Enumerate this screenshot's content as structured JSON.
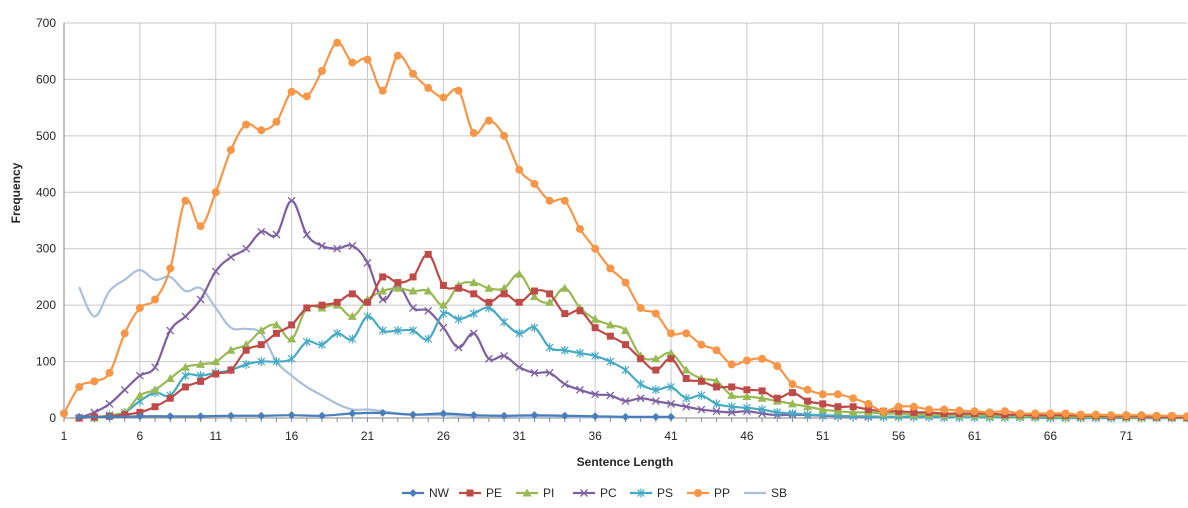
{
  "chart_data": {
    "type": "line",
    "title": "",
    "xlabel": "Sentence Length",
    "ylabel": "Frequency",
    "xlim": [
      1,
      75
    ],
    "ylim": [
      0,
      700
    ],
    "x_ticks": [
      1,
      6,
      11,
      16,
      21,
      26,
      31,
      36,
      41,
      46,
      51,
      56,
      61,
      66,
      71
    ],
    "y_ticks": [
      0,
      100,
      200,
      300,
      400,
      500,
      600,
      700
    ],
    "grid": true,
    "legend_position": "bottom",
    "colors": {
      "NW": "#4a7ebb",
      "PE": "#be4b48",
      "PI": "#98b954",
      "PC": "#7d60a0",
      "PS": "#46aac5",
      "PP": "#f79646",
      "SB": "#a9bfdc"
    },
    "series": [
      {
        "name": "NW",
        "marker": "diamond",
        "x": [
          2,
          4,
          6,
          8,
          10,
          12,
          14,
          16,
          18,
          20,
          22,
          24,
          26,
          28,
          30,
          32,
          34,
          36,
          38,
          40,
          41
        ],
        "y": [
          2,
          2,
          3,
          3,
          3,
          4,
          4,
          5,
          4,
          8,
          9,
          6,
          8,
          5,
          4,
          5,
          4,
          3,
          2,
          2,
          2
        ]
      },
      {
        "name": "PE",
        "marker": "square",
        "x": [
          2,
          3,
          4,
          5,
          6,
          7,
          8,
          9,
          10,
          11,
          12,
          13,
          14,
          15,
          16,
          17,
          18,
          19,
          20,
          21,
          22,
          23,
          24,
          25,
          26,
          27,
          28,
          29,
          30,
          31,
          32,
          33,
          34,
          35,
          36,
          37,
          38,
          39,
          40,
          41,
          42,
          43,
          44,
          45,
          46,
          47,
          48,
          49,
          50,
          51,
          52,
          53,
          54,
          55,
          56,
          57,
          58,
          59,
          60,
          61,
          62,
          63,
          64,
          65,
          66,
          67,
          68,
          69,
          70,
          71,
          72,
          73,
          74,
          75
        ],
        "y": [
          0,
          2,
          3,
          6,
          10,
          20,
          35,
          55,
          65,
          78,
          85,
          120,
          130,
          150,
          165,
          195,
          200,
          205,
          220,
          205,
          250,
          240,
          250,
          290,
          235,
          230,
          220,
          205,
          220,
          205,
          225,
          220,
          185,
          190,
          160,
          145,
          130,
          105,
          85,
          105,
          70,
          65,
          55,
          55,
          50,
          48,
          35,
          45,
          30,
          25,
          20,
          20,
          15,
          12,
          12,
          10,
          10,
          8,
          8,
          8,
          8,
          6,
          6,
          5,
          5,
          5,
          4,
          4,
          3,
          3,
          3,
          2,
          2,
          1
        ]
      },
      {
        "name": "PI",
        "marker": "triangle",
        "x": [
          3,
          4,
          5,
          6,
          7,
          8,
          9,
          10,
          11,
          12,
          13,
          14,
          15,
          16,
          17,
          18,
          19,
          20,
          21,
          22,
          23,
          24,
          25,
          26,
          27,
          28,
          29,
          30,
          31,
          32,
          33,
          34,
          35,
          36,
          37,
          38,
          39,
          40,
          41,
          42,
          43,
          44,
          45,
          46,
          47,
          48,
          49,
          50,
          51,
          52,
          53,
          54,
          55,
          56,
          57,
          58,
          59,
          60,
          61,
          62,
          63,
          64,
          65,
          66,
          67,
          68,
          69,
          70,
          71,
          72,
          73,
          74,
          75
        ],
        "y": [
          0,
          5,
          10,
          40,
          50,
          70,
          90,
          95,
          100,
          120,
          130,
          155,
          165,
          140,
          195,
          195,
          200,
          180,
          210,
          225,
          230,
          225,
          225,
          200,
          235,
          240,
          230,
          230,
          255,
          215,
          205,
          230,
          195,
          175,
          165,
          155,
          110,
          105,
          115,
          85,
          70,
          65,
          40,
          38,
          35,
          30,
          25,
          20,
          15,
          12,
          10,
          10,
          8,
          8,
          6,
          6,
          5,
          5,
          5,
          4,
          4,
          3,
          3,
          3,
          2,
          2,
          2,
          2,
          1,
          1,
          1,
          1,
          0
        ]
      },
      {
        "name": "PC",
        "marker": "x",
        "x": [
          2,
          3,
          4,
          5,
          6,
          7,
          8,
          9,
          10,
          11,
          12,
          13,
          14,
          15,
          16,
          17,
          18,
          19,
          20,
          21,
          22,
          23,
          24,
          25,
          26,
          27,
          28,
          29,
          30,
          31,
          32,
          33,
          34,
          35,
          36,
          37,
          38,
          39,
          40,
          41,
          42,
          43,
          44,
          45,
          46,
          47,
          48,
          49,
          50,
          51,
          52,
          53,
          54,
          55,
          56,
          57,
          58,
          59,
          60,
          61,
          62,
          63,
          64,
          65,
          66,
          67,
          68,
          69,
          70,
          71,
          72,
          73,
          74,
          75
        ],
        "y": [
          0,
          10,
          25,
          50,
          75,
          90,
          155,
          180,
          210,
          260,
          285,
          300,
          330,
          325,
          385,
          325,
          305,
          300,
          305,
          275,
          210,
          235,
          195,
          190,
          160,
          125,
          150,
          105,
          110,
          90,
          80,
          80,
          60,
          50,
          42,
          40,
          30,
          35,
          30,
          25,
          20,
          15,
          12,
          10,
          12,
          8,
          5,
          6,
          5,
          4,
          3,
          3,
          2,
          2,
          2,
          2,
          2,
          1,
          1,
          1,
          1,
          1,
          1,
          1,
          0,
          0,
          0,
          0,
          0,
          0,
          0,
          0,
          0,
          0
        ]
      },
      {
        "name": "PS",
        "marker": "asterisk",
        "x": [
          3,
          4,
          5,
          6,
          7,
          8,
          9,
          10,
          11,
          12,
          13,
          14,
          15,
          16,
          17,
          18,
          19,
          20,
          21,
          22,
          23,
          24,
          25,
          26,
          27,
          28,
          29,
          30,
          31,
          32,
          33,
          34,
          35,
          36,
          37,
          38,
          39,
          40,
          41,
          42,
          43,
          44,
          45,
          46,
          47,
          48,
          49,
          50,
          51,
          52,
          53,
          54,
          55,
          56,
          57,
          58,
          59,
          60,
          61,
          62,
          63,
          64,
          65,
          66,
          67,
          68,
          69,
          70,
          71,
          72,
          73,
          74,
          75
        ],
        "y": [
          0,
          5,
          10,
          30,
          45,
          40,
          75,
          75,
          80,
          85,
          95,
          100,
          100,
          105,
          135,
          130,
          150,
          140,
          180,
          155,
          155,
          155,
          140,
          185,
          175,
          185,
          195,
          170,
          150,
          160,
          125,
          120,
          115,
          110,
          100,
          85,
          60,
          50,
          55,
          35,
          40,
          25,
          20,
          18,
          15,
          10,
          8,
          6,
          5,
          4,
          3,
          3,
          2,
          2,
          2,
          2,
          1,
          1,
          1,
          1,
          1,
          1,
          1,
          0,
          0,
          0,
          0,
          0,
          0,
          0,
          0,
          0,
          0
        ]
      },
      {
        "name": "PP",
        "marker": "circle",
        "x": [
          1,
          2,
          3,
          4,
          5,
          6,
          7,
          8,
          9,
          10,
          11,
          12,
          13,
          14,
          15,
          16,
          17,
          18,
          19,
          20,
          21,
          22,
          23,
          24,
          25,
          26,
          27,
          28,
          29,
          30,
          31,
          32,
          33,
          34,
          35,
          36,
          37,
          38,
          39,
          40,
          41,
          42,
          43,
          44,
          45,
          46,
          47,
          48,
          49,
          50,
          51,
          52,
          53,
          54,
          55,
          56,
          57,
          58,
          59,
          60,
          61,
          62,
          63,
          64,
          65,
          66,
          67,
          68,
          69,
          70,
          71,
          72,
          73,
          74,
          75
        ],
        "y": [
          8,
          55,
          65,
          80,
          150,
          195,
          210,
          265,
          385,
          340,
          400,
          475,
          520,
          510,
          525,
          578,
          570,
          615,
          665,
          630,
          635,
          580,
          642,
          610,
          585,
          568,
          580,
          505,
          527,
          500,
          440,
          415,
          385,
          385,
          335,
          300,
          265,
          240,
          195,
          185,
          150,
          150,
          130,
          120,
          95,
          102,
          105,
          92,
          60,
          50,
          42,
          42,
          35,
          25,
          12,
          20,
          20,
          15,
          15,
          13,
          12,
          10,
          12,
          8,
          8,
          8,
          8,
          6,
          6,
          5,
          5,
          5,
          4,
          4,
          3
        ]
      },
      {
        "name": "SB",
        "marker": "none",
        "x": [
          2,
          3,
          4,
          5,
          6,
          7,
          8,
          9,
          10,
          11,
          12,
          13,
          14,
          15,
          16,
          17,
          18,
          19,
          20,
          21,
          22,
          23,
          24,
          25,
          26,
          27,
          28,
          29,
          30,
          31,
          32,
          33,
          34,
          35,
          36,
          37,
          38,
          39,
          40,
          41
        ],
        "y": [
          232,
          180,
          225,
          245,
          262,
          245,
          250,
          225,
          230,
          195,
          160,
          158,
          150,
          100,
          75,
          55,
          40,
          25,
          15,
          15,
          12,
          8,
          6,
          5,
          5,
          4,
          3,
          3,
          3,
          2,
          2,
          2,
          2,
          1,
          1,
          1,
          1,
          1,
          1,
          1
        ]
      }
    ]
  }
}
